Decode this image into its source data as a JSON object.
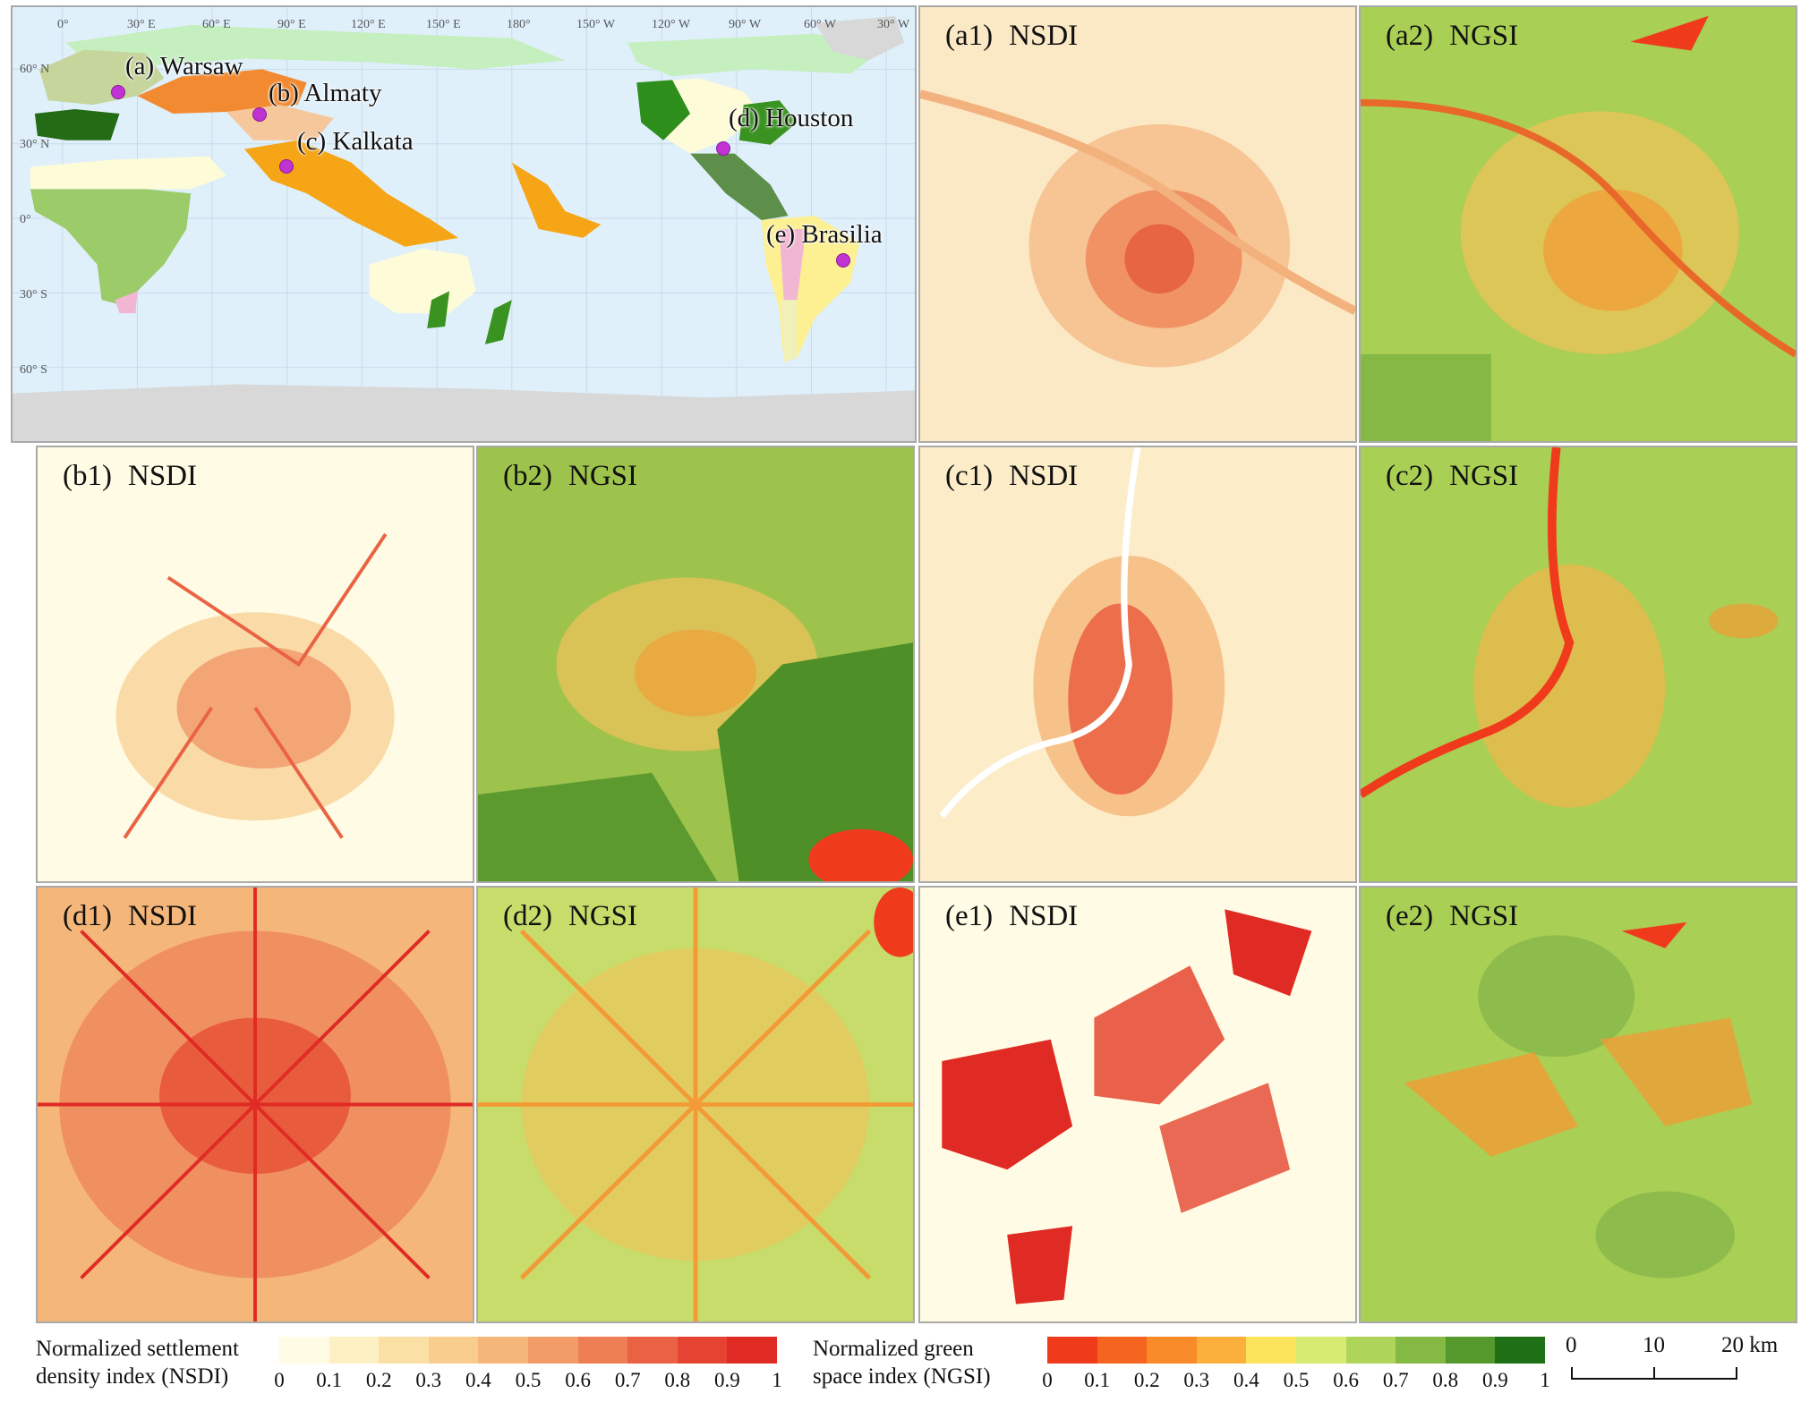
{
  "world_map": {
    "lon_labels": [
      "0°",
      "30° E",
      "60° E",
      "90° E",
      "120° E",
      "150° E",
      "180°",
      "150° W",
      "120° W",
      "90° W",
      "60° W",
      "30° W"
    ],
    "lat_labels": [
      "60° N",
      "30° N",
      "0°",
      "30° S",
      "60° S"
    ],
    "cities": [
      {
        "id": "a",
        "label": "(a) Warsaw"
      },
      {
        "id": "b",
        "label": "(b) Almaty"
      },
      {
        "id": "c",
        "label": "(c) Kalkata"
      },
      {
        "id": "d",
        "label": "(d) Houston"
      },
      {
        "id": "e",
        "label": "(e) Brasilia"
      }
    ],
    "colors": {
      "ocean": "#dff0fb",
      "ice": "#d8d8d8",
      "city_marker": "#c032d2"
    }
  },
  "panels": [
    {
      "id": "a1",
      "tag": "(a1)",
      "index": "NSDI"
    },
    {
      "id": "a2",
      "tag": "(a2)",
      "index": "NGSI"
    },
    {
      "id": "b1",
      "tag": "(b1)",
      "index": "NSDI"
    },
    {
      "id": "b2",
      "tag": "(b2)",
      "index": "NGSI"
    },
    {
      "id": "c1",
      "tag": "(c1)",
      "index": "NSDI"
    },
    {
      "id": "c2",
      "tag": "(c2)",
      "index": "NGSI"
    },
    {
      "id": "d1",
      "tag": "(d1)",
      "index": "NSDI"
    },
    {
      "id": "d2",
      "tag": "(d2)",
      "index": "NGSI"
    },
    {
      "id": "e1",
      "tag": "(e1)",
      "index": "NSDI"
    },
    {
      "id": "e2",
      "tag": "(e2)",
      "index": "NGSI"
    }
  ],
  "legend_nsdi": {
    "title_line1": "Normalized settlement",
    "title_line2": "density index (NSDI)",
    "colors": [
      "#fffbe4",
      "#fdf0c2",
      "#fbe0a6",
      "#f8cd8e",
      "#f5b67a",
      "#f29c68",
      "#ee7f55",
      "#ea6244",
      "#e54433",
      "#e02a24"
    ],
    "ticks": [
      "0",
      "0.1",
      "0.2",
      "0.3",
      "0.4",
      "0.5",
      "0.6",
      "0.7",
      "0.8",
      "0.9",
      "1"
    ]
  },
  "legend_ngsi": {
    "title_line1": "Normalized green",
    "title_line2": "space index (NGSI)",
    "colors": [
      "#f03a1c",
      "#f5651f",
      "#f98b2a",
      "#fbb03c",
      "#fbe45c",
      "#d7ea72",
      "#afd45a",
      "#84b944",
      "#55992c",
      "#1f6f16"
    ],
    "ticks": [
      "0",
      "0.1",
      "0.2",
      "0.3",
      "0.4",
      "0.5",
      "0.6",
      "0.7",
      "0.8",
      "0.9",
      "1"
    ]
  },
  "scale_bar": {
    "ticks": [
      "0",
      "10",
      "20 km"
    ]
  }
}
